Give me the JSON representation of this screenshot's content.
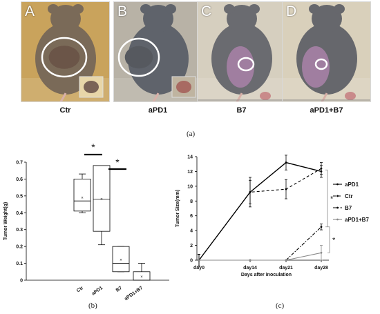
{
  "figure": {
    "panel_a": {
      "caption": "(a)",
      "photos": [
        {
          "letter": "A",
          "label": "Ctr",
          "bg": "#c9a35c",
          "fur": "#7a6a58"
        },
        {
          "letter": "B",
          "label": "aPD1",
          "bg": "#b8b2a6",
          "fur": "#5f636b"
        },
        {
          "letter": "C",
          "label": "B7",
          "bg": "#d6cfbf",
          "fur": "#6a6b70"
        },
        {
          "letter": "D",
          "label": "aPD1+B7",
          "bg": "#d9d0bb",
          "fur": "#66676c"
        }
      ]
    },
    "panel_b_caption": "(b)",
    "panel_c_caption": "(c)"
  },
  "chart_data": [
    {
      "type": "box",
      "ylabel": "Tumor Weight(g)",
      "xlabel": "",
      "ylim": [
        0,
        0.7
      ],
      "yticks": [
        "0",
        "0.1",
        "0.2",
        "0.3",
        "0.4",
        "0.5",
        "0.6",
        "0.7"
      ],
      "categories": [
        "Ctr",
        "aPD1",
        "B7",
        "aPD1+B7"
      ],
      "boxes": [
        {
          "min": 0.4,
          "q1": 0.41,
          "median": 0.47,
          "q3": 0.6,
          "max": 0.63,
          "mean": 0.49
        },
        {
          "min": 0.21,
          "q1": 0.29,
          "median": 0.48,
          "q3": 0.68,
          "max": 0.68,
          "mean": 0.48
        },
        {
          "min": 0.05,
          "q1": 0.05,
          "median": 0.1,
          "q3": 0.2,
          "max": 0.2,
          "mean": 0.12
        },
        {
          "min": 0.0,
          "q1": 0.0,
          "median": 0.0,
          "q3": 0.05,
          "max": 0.1,
          "mean": 0.02
        }
      ],
      "significance": [
        {
          "between": [
            "aPD1",
            "B7"
          ],
          "label": "*"
        },
        {
          "between": [
            "B7",
            "aPD1+B7"
          ],
          "label": "*"
        }
      ],
      "grid": false
    },
    {
      "type": "line",
      "ylabel": "Tumor Size(mm)",
      "xlabel": "Days after inoculation",
      "ylim": [
        0,
        14
      ],
      "yticks": [
        "0",
        "2",
        "4",
        "6",
        "8",
        "10",
        "12",
        "14"
      ],
      "x": [
        "day0",
        "day14",
        "day21",
        "day28"
      ],
      "series": [
        {
          "name": "aPD1",
          "values": [
            0,
            9.2,
            13.2,
            12.0
          ],
          "errors": [
            0.8,
            2.0,
            1.0,
            0.8
          ],
          "dash": "solid",
          "color": "#000000",
          "marker": "square"
        },
        {
          "name": "Ctr",
          "values": [
            0,
            9.2,
            9.6,
            12.4
          ],
          "errors": [
            0.8,
            1.6,
            1.3,
            0.8
          ],
          "dash": "dashed",
          "color": "#000000",
          "marker": "triangle"
        },
        {
          "name": "B7",
          "values": [
            0,
            0,
            0,
            4.5
          ],
          "errors": [
            0,
            0,
            0,
            0.4
          ],
          "dash": "dashdot",
          "color": "#000000",
          "marker": "diamond"
        },
        {
          "name": "aPD1+B7",
          "values": [
            0,
            0,
            0,
            1.0
          ],
          "errors": [
            0,
            0,
            0,
            1.0
          ],
          "dash": "solid",
          "color": "#8a8a8a",
          "marker": "circle"
        }
      ],
      "significance": [
        {
          "label": "*",
          "span": [
            4.5,
            12.2
          ]
        },
        {
          "label": "*",
          "span": [
            1.0,
            4.5
          ]
        }
      ],
      "legend": "right",
      "grid": false
    }
  ]
}
